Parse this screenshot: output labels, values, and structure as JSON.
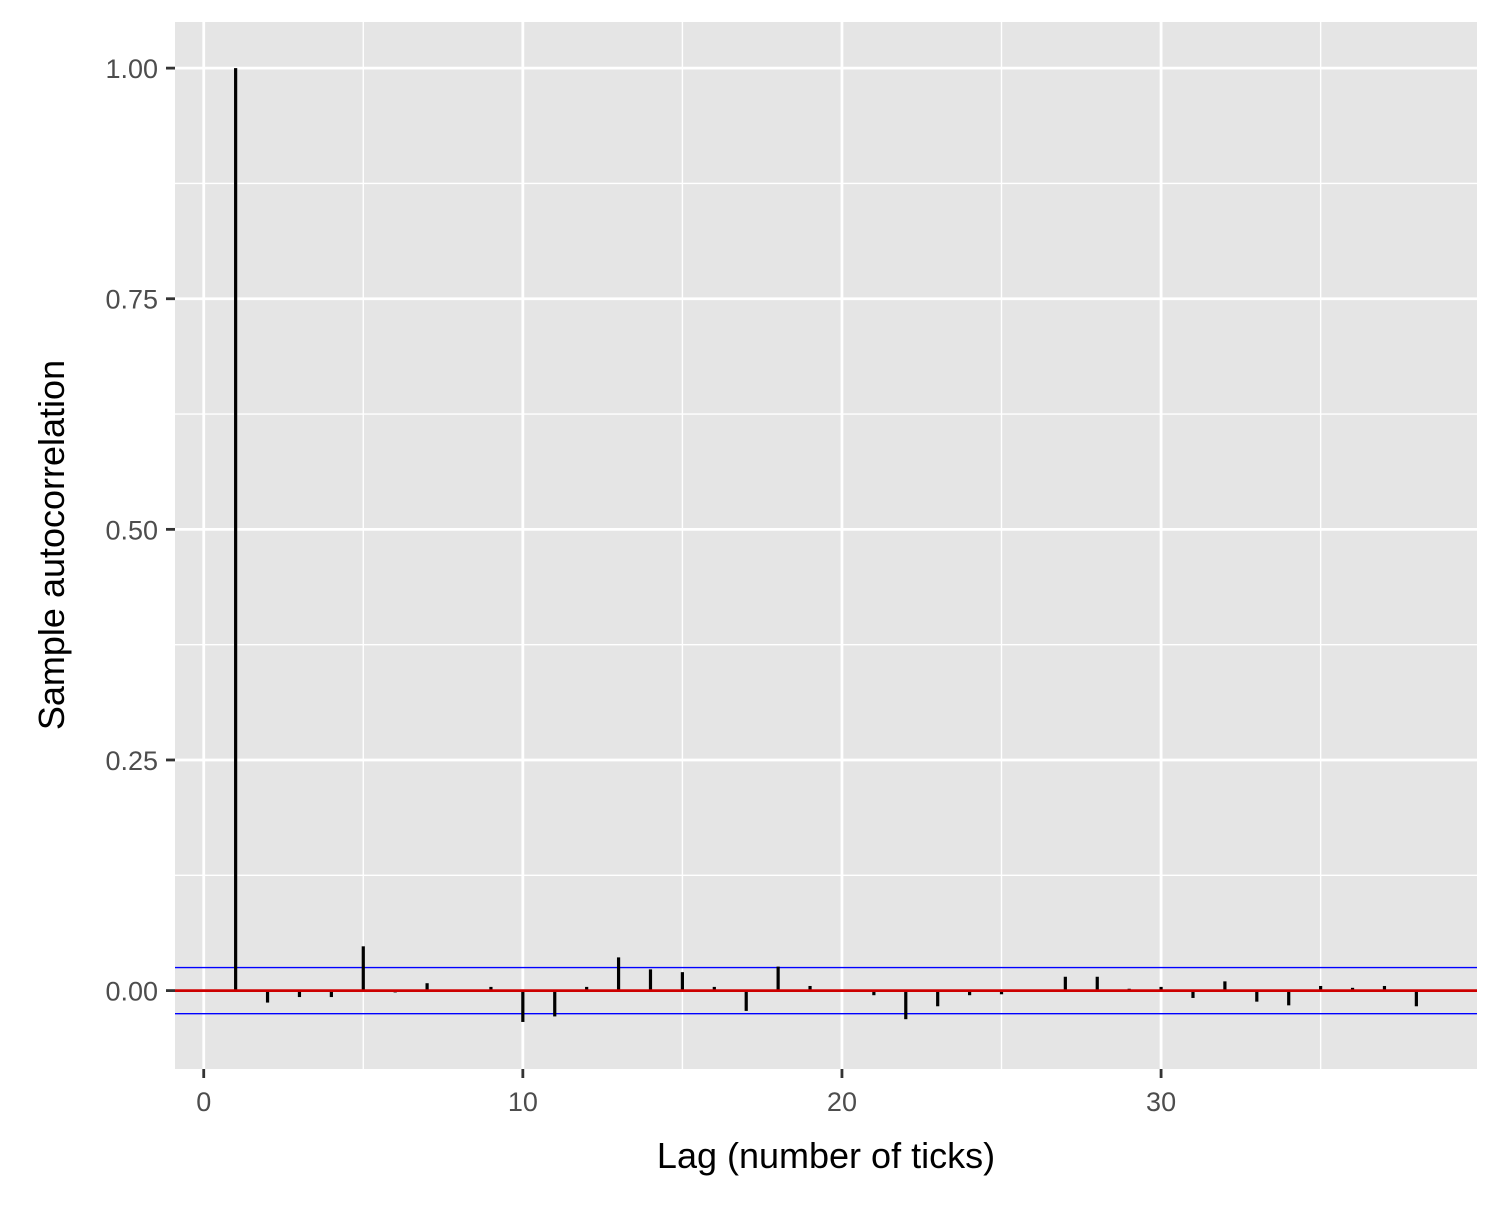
{
  "chart_data": {
    "type": "bar",
    "xlabel": "Lag (number of ticks)",
    "ylabel": "Sample autocorrelation",
    "xlim": [
      -0.9,
      39.9
    ],
    "ylim": [
      -0.085,
      1.05
    ],
    "x_ticks": [
      0,
      10,
      20,
      30
    ],
    "x_tick_labels": [
      "0",
      "10",
      "20",
      "30"
    ],
    "x_minor_ticks": [
      5,
      15,
      25,
      35
    ],
    "y_ticks": [
      0,
      0.25,
      0.5,
      0.75,
      1.0
    ],
    "y_tick_labels": [
      "0.00",
      "0.25",
      "0.50",
      "0.75",
      "1.00"
    ],
    "y_minor_ticks": [
      0.125,
      0.375,
      0.625,
      0.875
    ],
    "grid": true,
    "confidence_bound": 0.025,
    "zero_line_color": "#cc0000",
    "bound_color": "#0000ff",
    "bar_color": "#000000",
    "panel_background": "#e5e5e5",
    "lags": [
      1,
      2,
      3,
      4,
      5,
      6,
      7,
      8,
      9,
      10,
      11,
      12,
      13,
      14,
      15,
      16,
      17,
      18,
      19,
      20,
      21,
      22,
      23,
      24,
      25,
      26,
      27,
      28,
      29,
      30,
      31,
      32,
      33,
      34,
      35,
      36,
      37,
      38
    ],
    "values": [
      1.0,
      -0.013,
      -0.007,
      -0.007,
      0.048,
      -0.002,
      0.008,
      0.001,
      0.004,
      -0.034,
      -0.028,
      0.004,
      0.036,
      0.023,
      0.02,
      0.004,
      -0.022,
      0.026,
      0.005,
      0.001,
      -0.005,
      -0.031,
      -0.017,
      -0.005,
      -0.004,
      0.001,
      0.015,
      0.015,
      0.002,
      0.004,
      -0.008,
      0.01,
      -0.012,
      -0.016,
      0.005,
      0.003,
      0.005,
      -0.017
    ]
  }
}
